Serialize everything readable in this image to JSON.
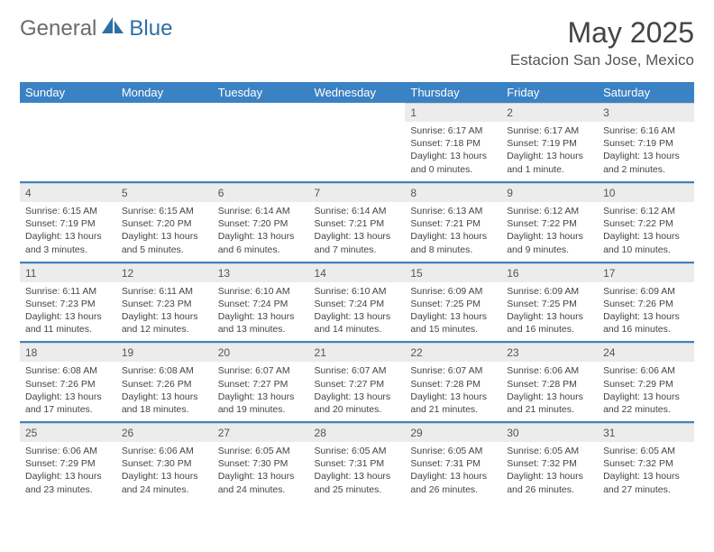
{
  "brand": {
    "part1": "General",
    "part2": "Blue"
  },
  "title": "May 2025",
  "location": "Estacion San Jose, Mexico",
  "colors": {
    "header_bg": "#3b82c4",
    "header_text": "#ffffff",
    "daynum_bg": "#ececec",
    "text": "#444444",
    "logo_gray": "#6b6b6b",
    "logo_blue": "#2f6fa8"
  },
  "layout": {
    "columns": 7,
    "rows": 5,
    "first_weekday_index": 4,
    "days_in_month": 31
  },
  "weekdays": [
    "Sunday",
    "Monday",
    "Tuesday",
    "Wednesday",
    "Thursday",
    "Friday",
    "Saturday"
  ],
  "days": [
    {
      "n": 1,
      "sr": "6:17 AM",
      "ss": "7:18 PM",
      "dl": "13 hours and 0 minutes."
    },
    {
      "n": 2,
      "sr": "6:17 AM",
      "ss": "7:19 PM",
      "dl": "13 hours and 1 minute."
    },
    {
      "n": 3,
      "sr": "6:16 AM",
      "ss": "7:19 PM",
      "dl": "13 hours and 2 minutes."
    },
    {
      "n": 4,
      "sr": "6:15 AM",
      "ss": "7:19 PM",
      "dl": "13 hours and 3 minutes."
    },
    {
      "n": 5,
      "sr": "6:15 AM",
      "ss": "7:20 PM",
      "dl": "13 hours and 5 minutes."
    },
    {
      "n": 6,
      "sr": "6:14 AM",
      "ss": "7:20 PM",
      "dl": "13 hours and 6 minutes."
    },
    {
      "n": 7,
      "sr": "6:14 AM",
      "ss": "7:21 PM",
      "dl": "13 hours and 7 minutes."
    },
    {
      "n": 8,
      "sr": "6:13 AM",
      "ss": "7:21 PM",
      "dl": "13 hours and 8 minutes."
    },
    {
      "n": 9,
      "sr": "6:12 AM",
      "ss": "7:22 PM",
      "dl": "13 hours and 9 minutes."
    },
    {
      "n": 10,
      "sr": "6:12 AM",
      "ss": "7:22 PM",
      "dl": "13 hours and 10 minutes."
    },
    {
      "n": 11,
      "sr": "6:11 AM",
      "ss": "7:23 PM",
      "dl": "13 hours and 11 minutes."
    },
    {
      "n": 12,
      "sr": "6:11 AM",
      "ss": "7:23 PM",
      "dl": "13 hours and 12 minutes."
    },
    {
      "n": 13,
      "sr": "6:10 AM",
      "ss": "7:24 PM",
      "dl": "13 hours and 13 minutes."
    },
    {
      "n": 14,
      "sr": "6:10 AM",
      "ss": "7:24 PM",
      "dl": "13 hours and 14 minutes."
    },
    {
      "n": 15,
      "sr": "6:09 AM",
      "ss": "7:25 PM",
      "dl": "13 hours and 15 minutes."
    },
    {
      "n": 16,
      "sr": "6:09 AM",
      "ss": "7:25 PM",
      "dl": "13 hours and 16 minutes."
    },
    {
      "n": 17,
      "sr": "6:09 AM",
      "ss": "7:26 PM",
      "dl": "13 hours and 16 minutes."
    },
    {
      "n": 18,
      "sr": "6:08 AM",
      "ss": "7:26 PM",
      "dl": "13 hours and 17 minutes."
    },
    {
      "n": 19,
      "sr": "6:08 AM",
      "ss": "7:26 PM",
      "dl": "13 hours and 18 minutes."
    },
    {
      "n": 20,
      "sr": "6:07 AM",
      "ss": "7:27 PM",
      "dl": "13 hours and 19 minutes."
    },
    {
      "n": 21,
      "sr": "6:07 AM",
      "ss": "7:27 PM",
      "dl": "13 hours and 20 minutes."
    },
    {
      "n": 22,
      "sr": "6:07 AM",
      "ss": "7:28 PM",
      "dl": "13 hours and 21 minutes."
    },
    {
      "n": 23,
      "sr": "6:06 AM",
      "ss": "7:28 PM",
      "dl": "13 hours and 21 minutes."
    },
    {
      "n": 24,
      "sr": "6:06 AM",
      "ss": "7:29 PM",
      "dl": "13 hours and 22 minutes."
    },
    {
      "n": 25,
      "sr": "6:06 AM",
      "ss": "7:29 PM",
      "dl": "13 hours and 23 minutes."
    },
    {
      "n": 26,
      "sr": "6:06 AM",
      "ss": "7:30 PM",
      "dl": "13 hours and 24 minutes."
    },
    {
      "n": 27,
      "sr": "6:05 AM",
      "ss": "7:30 PM",
      "dl": "13 hours and 24 minutes."
    },
    {
      "n": 28,
      "sr": "6:05 AM",
      "ss": "7:31 PM",
      "dl": "13 hours and 25 minutes."
    },
    {
      "n": 29,
      "sr": "6:05 AM",
      "ss": "7:31 PM",
      "dl": "13 hours and 26 minutes."
    },
    {
      "n": 30,
      "sr": "6:05 AM",
      "ss": "7:32 PM",
      "dl": "13 hours and 26 minutes."
    },
    {
      "n": 31,
      "sr": "6:05 AM",
      "ss": "7:32 PM",
      "dl": "13 hours and 27 minutes."
    }
  ],
  "labels": {
    "sunrise": "Sunrise: ",
    "sunset": "Sunset: ",
    "daylight": "Daylight: "
  }
}
